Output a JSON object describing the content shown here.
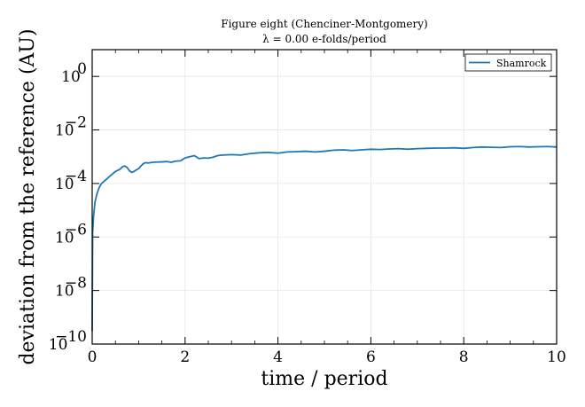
{
  "chart_data": {
    "type": "line",
    "title": "Figure eight (Chenciner-Montgomery)",
    "subtitle": "λ = 0.00 e-folds/period",
    "xlabel": "time / period",
    "ylabel": "deviation from the reference (AU)",
    "xlim": [
      0,
      10
    ],
    "ylim": [
      1e-10,
      10
    ],
    "yscale": "log",
    "grid": true,
    "legend_position": "top-right",
    "xticks": [
      {
        "value": 0,
        "label": "0"
      },
      {
        "value": 2,
        "label": "2"
      },
      {
        "value": 4,
        "label": "4"
      },
      {
        "value": 6,
        "label": "6"
      },
      {
        "value": 8,
        "label": "8"
      },
      {
        "value": 10,
        "label": "10"
      }
    ],
    "yticks": [
      {
        "value": 1e-10,
        "base": "10",
        "exp": "−10"
      },
      {
        "value": 1e-08,
        "base": "10",
        "exp": "−8"
      },
      {
        "value": 1e-06,
        "base": "10",
        "exp": "−6"
      },
      {
        "value": 0.0001,
        "base": "10",
        "exp": "−4"
      },
      {
        "value": 0.01,
        "base": "10",
        "exp": "−2"
      },
      {
        "value": 1,
        "base": "10",
        "exp": "0"
      }
    ],
    "series": [
      {
        "name": "Shamrock",
        "color": "#1f77b4",
        "x": [
          0,
          0.01,
          0.03,
          0.06,
          0.1,
          0.15,
          0.2,
          0.3,
          0.4,
          0.5,
          0.6,
          0.65,
          0.7,
          0.75,
          0.8,
          0.85,
          0.9,
          0.95,
          1.0,
          1.05,
          1.1,
          1.15,
          1.2,
          1.3,
          1.4,
          1.5,
          1.6,
          1.7,
          1.8,
          1.9,
          2.0,
          2.1,
          2.2,
          2.3,
          2.4,
          2.5,
          2.6,
          2.7,
          2.8,
          3.0,
          3.2,
          3.4,
          3.6,
          3.8,
          4.0,
          4.2,
          4.4,
          4.6,
          4.8,
          5.0,
          5.2,
          5.4,
          5.6,
          5.8,
          6.0,
          6.2,
          6.4,
          6.6,
          6.8,
          7.0,
          7.2,
          7.4,
          7.6,
          7.8,
          8.0,
          8.2,
          8.4,
          8.6,
          8.8,
          9.0,
          9.2,
          9.4,
          9.6,
          9.8,
          10.0
        ],
        "y": [
          3e-10,
          1.5e-06,
          6e-06,
          2e-05,
          4e-05,
          7e-05,
          0.0001,
          0.00014,
          0.0002,
          0.00028,
          0.00034,
          0.00042,
          0.00045,
          0.0004,
          0.0003,
          0.00026,
          0.00028,
          0.00032,
          0.00036,
          0.00045,
          0.00055,
          0.0006,
          0.00058,
          0.00062,
          0.00063,
          0.00064,
          0.00066,
          0.00062,
          0.00068,
          0.0007,
          0.0009,
          0.001,
          0.0011,
          0.00085,
          0.0009,
          0.00088,
          0.00095,
          0.0011,
          0.00115,
          0.0012,
          0.00115,
          0.0013,
          0.0014,
          0.00145,
          0.00135,
          0.0015,
          0.00155,
          0.0016,
          0.0015,
          0.0016,
          0.00175,
          0.0018,
          0.0017,
          0.0018,
          0.0019,
          0.00185,
          0.00195,
          0.002,
          0.0019,
          0.002,
          0.00205,
          0.0021,
          0.0021,
          0.00215,
          0.00205,
          0.0022,
          0.0023,
          0.00225,
          0.0022,
          0.00235,
          0.0024,
          0.0023,
          0.00235,
          0.0024,
          0.0023
        ]
      }
    ]
  }
}
